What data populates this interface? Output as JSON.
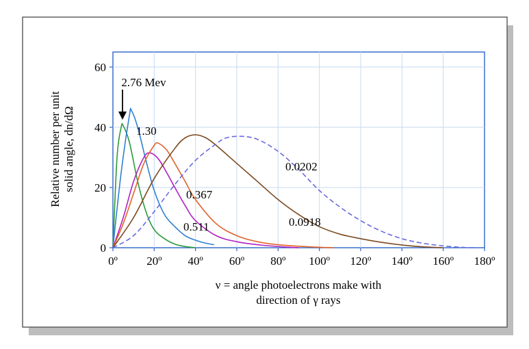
{
  "chart_data": {
    "type": "line",
    "title": "",
    "xlabel_line1": "ν = angle photoelectrons make with",
    "xlabel_line2": "direction of γ rays",
    "ylabel_line1": "Relative number per unit",
    "ylabel_line2": "solid angle, dn/dΩ",
    "xlim": [
      0,
      180
    ],
    "ylim": [
      0,
      65
    ],
    "x_ticks": [
      0,
      20,
      40,
      60,
      80,
      100,
      120,
      140,
      160,
      180
    ],
    "x_tick_labels": [
      "0º",
      "20º",
      "40º",
      "60º",
      "80º",
      "100º",
      "120º",
      "140º",
      "160º",
      "180º"
    ],
    "y_ticks": [
      0,
      20,
      40,
      60
    ],
    "y_tick_labels": [
      "0",
      "20",
      "40",
      "60"
    ],
    "grid": true,
    "arrow_label": "2.76 Mev",
    "series": [
      {
        "name": "2.76 Mev",
        "label": "2.76 Mev",
        "color": "#2a9a3a",
        "dashed": false,
        "x": [
          0,
          2,
          4,
          5,
          8,
          12,
          16,
          20,
          25,
          30,
          35,
          40
        ],
        "y": [
          0,
          30,
          40,
          40.5,
          35,
          22,
          12,
          6,
          3,
          1.2,
          0.4,
          0
        ]
      },
      {
        "name": "1.30",
        "label": "1.30",
        "color": "#2f7fd3",
        "dashed": false,
        "x": [
          0,
          4,
          8,
          9,
          12,
          16,
          20,
          25,
          30,
          35,
          40,
          45,
          49
        ],
        "y": [
          0,
          25,
          44,
          45.5,
          40,
          29,
          19,
          11,
          7,
          4,
          2.5,
          1.5,
          1
        ]
      },
      {
        "name": "0.511",
        "label": "0.511",
        "color": "#b020c0",
        "dashed": false,
        "x": [
          0,
          5,
          10,
          15,
          18,
          22,
          26,
          30,
          35,
          40,
          50,
          60,
          70,
          80,
          90
        ],
        "y": [
          0,
          10,
          22,
          30,
          31.5,
          29.5,
          25,
          20,
          14,
          9,
          4,
          2,
          1,
          0.4,
          0
        ]
      },
      {
        "name": "0.367",
        "label": "0.367",
        "color": "#e0632a",
        "dashed": false,
        "x": [
          0,
          5,
          10,
          15,
          20,
          22,
          26,
          30,
          35,
          40,
          50,
          60,
          70,
          80,
          95,
          107
        ],
        "y": [
          0,
          8,
          18,
          28,
          34,
          34.7,
          32.5,
          28,
          22,
          16,
          8,
          4,
          2,
          1,
          0.3,
          0
        ]
      },
      {
        "name": "0.0918",
        "label": "0.0918",
        "color": "#7a4a20",
        "dashed": false,
        "x": [
          0,
          10,
          20,
          30,
          35,
          40,
          45,
          50,
          60,
          70,
          80,
          90,
          100,
          110,
          120,
          130,
          140,
          150,
          160
        ],
        "y": [
          0,
          10,
          23,
          33,
          36.5,
          37.5,
          36.5,
          34,
          28,
          22,
          16,
          11,
          7,
          4.5,
          3,
          1.8,
          0.9,
          0.3,
          0
        ]
      },
      {
        "name": "0.0202",
        "label": "0.0202",
        "color": "#6a6ae0",
        "dashed": true,
        "x": [
          0,
          10,
          20,
          30,
          40,
          50,
          55,
          62,
          70,
          80,
          90,
          100,
          110,
          120,
          130,
          140,
          150,
          160,
          170,
          175
        ],
        "y": [
          0,
          4,
          12,
          21,
          29,
          34.5,
          36.5,
          37,
          36,
          32,
          26,
          19,
          13.5,
          9,
          5.5,
          3,
          1.5,
          0.6,
          0.1,
          0
        ]
      }
    ]
  }
}
